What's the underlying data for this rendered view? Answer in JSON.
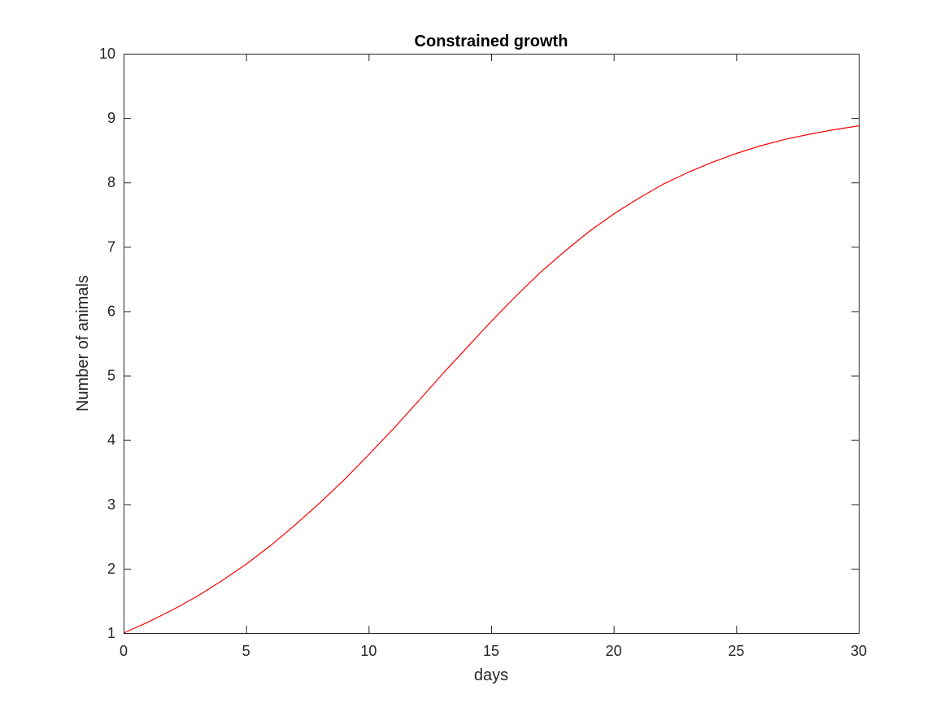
{
  "chart_data": {
    "type": "line",
    "title": "Constrained growth",
    "xlabel": "days",
    "ylabel": "Number of animals",
    "xlim": [
      0,
      30
    ],
    "ylim": [
      1,
      10
    ],
    "xticks": [
      0,
      5,
      10,
      15,
      20,
      25,
      30
    ],
    "yticks": [
      1,
      2,
      3,
      4,
      5,
      6,
      7,
      8,
      9,
      10
    ],
    "grid": false,
    "box": true,
    "series": [
      {
        "color": "#ff0000",
        "x": [
          0,
          1,
          2,
          3,
          4,
          5,
          6,
          7,
          8,
          9,
          10,
          11,
          12,
          13,
          14,
          15,
          16,
          17,
          18,
          19,
          20,
          21,
          22,
          23,
          24,
          25,
          26,
          27,
          28,
          29,
          30
        ],
        "y": [
          1.0,
          1.17,
          1.36,
          1.57,
          1.81,
          2.07,
          2.36,
          2.68,
          3.02,
          3.38,
          3.77,
          4.17,
          4.59,
          5.02,
          5.43,
          5.84,
          6.23,
          6.6,
          6.93,
          7.24,
          7.51,
          7.75,
          7.97,
          8.15,
          8.31,
          8.45,
          8.57,
          8.67,
          8.75,
          8.82,
          8.88
        ]
      }
    ]
  }
}
